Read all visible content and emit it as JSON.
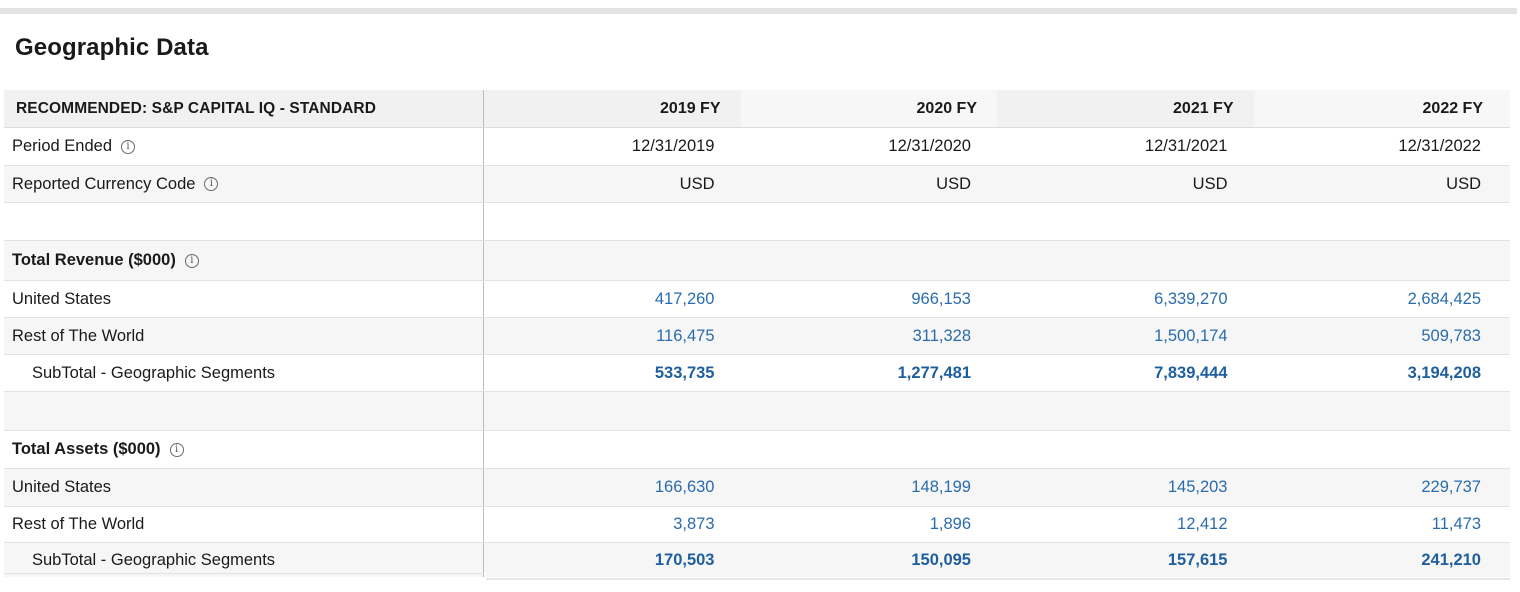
{
  "title": "Geographic Data",
  "header": {
    "label": "RECOMMENDED: S&P CAPITAL IQ - STANDARD",
    "years": [
      "2019 FY",
      "2020 FY",
      "2021 FY",
      "2022 FY"
    ]
  },
  "period_ended": {
    "label": "Period Ended",
    "values": [
      "12/31/2019",
      "12/31/2020",
      "12/31/2021",
      "12/31/2022"
    ]
  },
  "currency": {
    "label": "Reported Currency Code",
    "values": [
      "USD",
      "USD",
      "USD",
      "USD"
    ]
  },
  "revenue": {
    "label": "Total Revenue ($000)",
    "rows": [
      {
        "label": "United States",
        "values": [
          "417,260",
          "966,153",
          "6,339,270",
          "2,684,425"
        ]
      },
      {
        "label": "Rest of The World",
        "values": [
          "116,475",
          "311,328",
          "1,500,174",
          "509,783"
        ]
      }
    ],
    "subtotal": {
      "label": "SubTotal - Geographic Segments",
      "values": [
        "533,735",
        "1,277,481",
        "7,839,444",
        "3,194,208"
      ]
    }
  },
  "assets": {
    "label": "Total Assets ($000)",
    "rows": [
      {
        "label": "United States",
        "values": [
          "166,630",
          "148,199",
          "145,203",
          "229,737"
        ]
      },
      {
        "label": "Rest of The World",
        "values": [
          "3,873",
          "1,896",
          "12,412",
          "11,473"
        ]
      }
    ],
    "subtotal": {
      "label": "SubTotal - Geographic Segments",
      "values": [
        "170,503",
        "150,095",
        "157,615",
        "241,210"
      ]
    }
  },
  "info_glyph": "i",
  "colors": {
    "link_value": "#2a6cad",
    "subtotal_value": "#1f5f9e",
    "header_bg": "#f1f1f1"
  }
}
